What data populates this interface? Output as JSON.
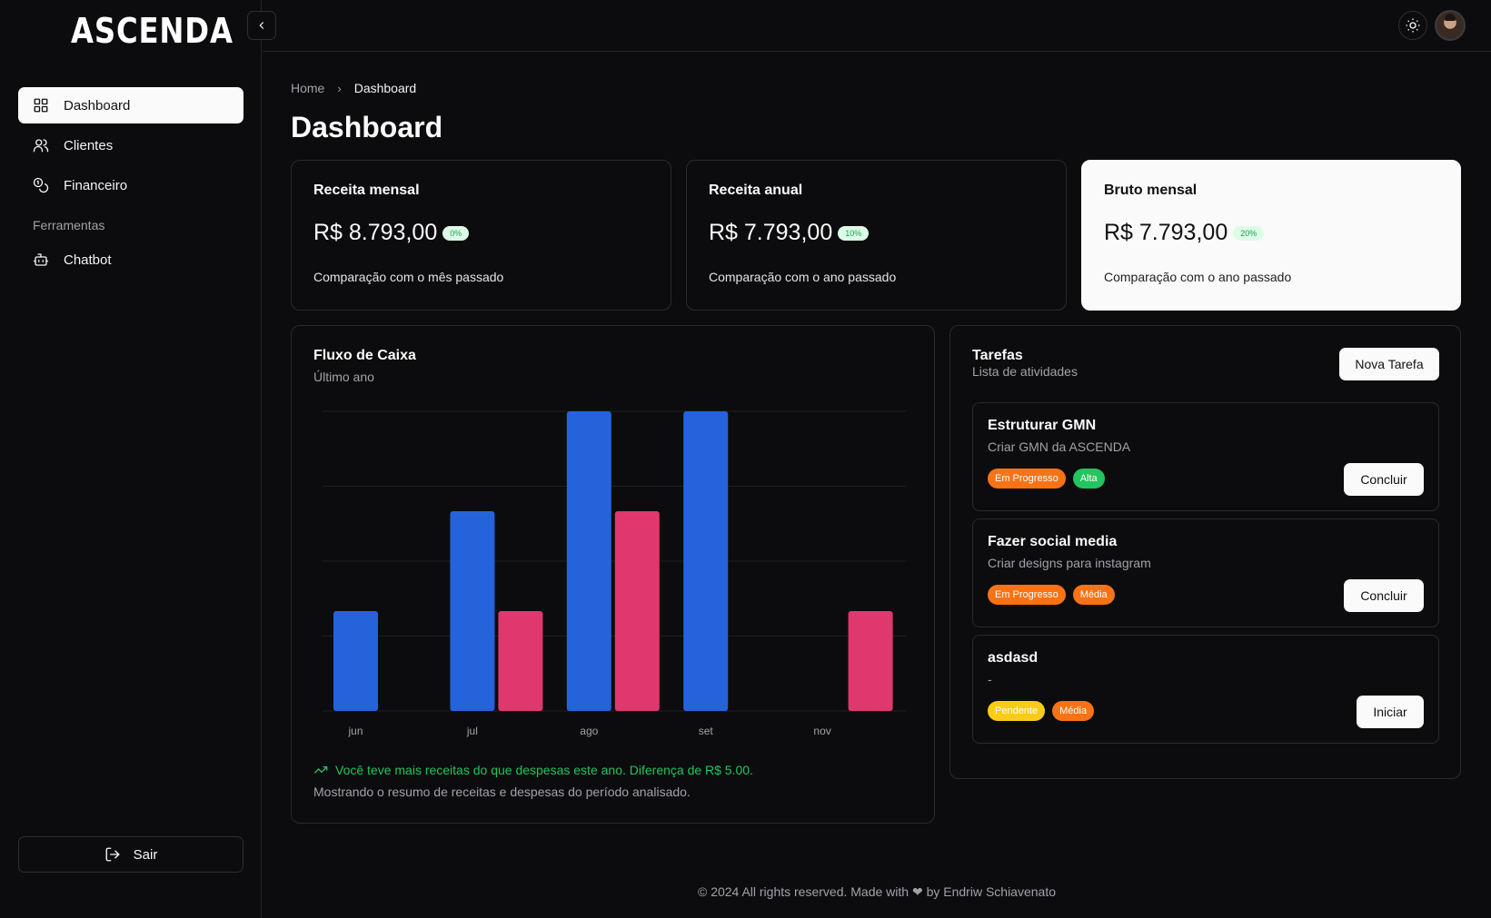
{
  "app": {
    "logo": "ASCENDA"
  },
  "sidebar": {
    "items": [
      {
        "label": "Dashboard",
        "icon": "grid-icon",
        "active": true
      },
      {
        "label": "Clientes",
        "icon": "users-icon",
        "active": false
      },
      {
        "label": "Financeiro",
        "icon": "coins-icon",
        "active": false
      }
    ],
    "section_label": "Ferramentas",
    "tools": [
      {
        "label": "Chatbot",
        "icon": "bot-icon"
      }
    ],
    "logout_label": "Sair"
  },
  "breadcrumb": {
    "home": "Home",
    "current": "Dashboard"
  },
  "page_title": "Dashboard",
  "stats": [
    {
      "title": "Receita mensal",
      "value": "R$ 8.793,00",
      "pct": "0%",
      "note": "Comparação com o mês passado"
    },
    {
      "title": "Receita anual",
      "value": "R$ 7.793,00",
      "pct": "10%",
      "note": "Comparação com o ano passado"
    },
    {
      "title": "Bruto mensal",
      "value": "R$ 7.793,00",
      "pct": "20%",
      "note": "Comparação com o ano passado"
    }
  ],
  "cashflow": {
    "title": "Fluxo de Caixa",
    "subtitle": "Último ano",
    "trend_text": "Você teve mais receitas do que despesas este ano. Diferença de R$ 5.00.",
    "footer_text": "Mostrando o resumo de receitas e despesas do período analisado."
  },
  "chart_data": {
    "type": "bar",
    "categories": [
      "jun",
      "jul",
      "ago",
      "set",
      "nov"
    ],
    "series": [
      {
        "color": "#2563db",
        "values": [
          1,
          2,
          3,
          3,
          0
        ]
      },
      {
        "color": "#e0376f",
        "values": [
          0,
          1,
          2,
          0,
          1
        ]
      }
    ],
    "ylim": [
      0,
      3
    ],
    "grid": true
  },
  "tasks": {
    "title": "Tarefas",
    "subtitle": "Lista de atividades",
    "new_button": "Nova Tarefa",
    "items": [
      {
        "name": "Estruturar GMN",
        "desc": "Criar GMN da ASCENDA",
        "status": "Em Progresso",
        "status_color": "#f97316",
        "priority": "Alta",
        "priority_color": "#22c55e",
        "action": "Concluir"
      },
      {
        "name": "Fazer social media",
        "desc": "Criar designs para instagram",
        "status": "Em Progresso",
        "status_color": "#f97316",
        "priority": "Média",
        "priority_color": "#f97316",
        "action": "Concluir"
      },
      {
        "name": "asdasd",
        "desc": "-",
        "status": "Pendente",
        "status_color": "#facc15",
        "priority": "Média",
        "priority_color": "#f97316",
        "action": "Iniciar"
      }
    ]
  },
  "footer": "© 2024 All rights reserved. Made with ❤ by Endriw Schiavenato"
}
